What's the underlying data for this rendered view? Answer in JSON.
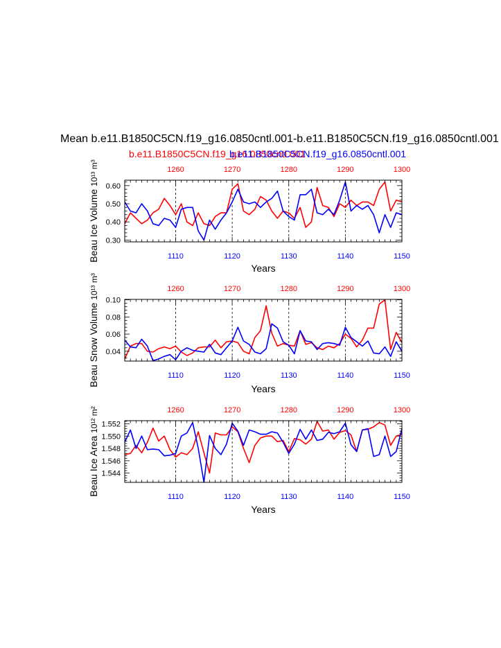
{
  "page": {
    "title": "Mean b.e11.B1850C5CN.f19_g16.0850cntl.001-b.e11.B1850C5CN.f19_g16.0850cntl.001",
    "case_red": "b.e11.B1850C5CN.f19_g16.0850cntl.001",
    "case_blue": "b.e11.B1850C5CN.f19_g16.0850cntl.001"
  },
  "colors": {
    "red": "#ff0000",
    "blue": "#0000ff",
    "axis": "#000000",
    "grid": "#000000"
  },
  "chart_data": [
    {
      "type": "line",
      "ylabel": "Beau Ice Volume",
      "ylabel_unit": "10¹³ m³",
      "xlabel": "Years",
      "top_axis": {
        "range": [
          1251,
          1300
        ],
        "ticks": [
          1260,
          1270,
          1280,
          1290,
          1300
        ]
      },
      "bottom_axis": {
        "range": [
          1101,
          1150
        ],
        "ticks": [
          1110,
          1120,
          1130,
          1140,
          1150
        ]
      },
      "ylim": [
        0.29,
        0.63
      ],
      "yticks": [
        0.3,
        0.4,
        0.5,
        0.6
      ],
      "ytick_labels": [
        "0.30",
        "0.40",
        "0.50",
        "0.60"
      ],
      "grid": "vertical dashed at tick years",
      "series": [
        {
          "name": "red",
          "axis": "top",
          "values": [
            0.39,
            0.45,
            0.42,
            0.39,
            0.41,
            0.45,
            0.47,
            0.53,
            0.49,
            0.44,
            0.5,
            0.4,
            0.38,
            0.45,
            0.39,
            0.38,
            0.43,
            0.45,
            0.45,
            0.58,
            0.61,
            0.46,
            0.44,
            0.47,
            0.54,
            0.52,
            0.46,
            0.42,
            0.46,
            0.45,
            0.42,
            0.48,
            0.37,
            0.4,
            0.59,
            0.49,
            0.48,
            0.43,
            0.5,
            0.48,
            0.52,
            0.49,
            0.51,
            0.51,
            0.49,
            0.58,
            0.62,
            0.46,
            0.52,
            0.51
          ]
        },
        {
          "name": "blue",
          "axis": "bottom",
          "values": [
            0.51,
            0.46,
            0.45,
            0.5,
            0.46,
            0.39,
            0.38,
            0.42,
            0.41,
            0.37,
            0.47,
            0.48,
            0.48,
            0.35,
            0.3,
            0.41,
            0.36,
            0.41,
            0.45,
            0.51,
            0.58,
            0.51,
            0.5,
            0.51,
            0.48,
            0.51,
            0.53,
            0.57,
            0.46,
            0.43,
            0.41,
            0.55,
            0.55,
            0.58,
            0.45,
            0.44,
            0.47,
            0.44,
            0.52,
            0.62,
            0.46,
            0.49,
            0.47,
            0.49,
            0.44,
            0.34,
            0.44,
            0.37,
            0.45,
            0.44
          ]
        }
      ]
    },
    {
      "type": "line",
      "ylabel": "Beau Snow Volume",
      "ylabel_unit": "10¹³ m³",
      "xlabel": "Years",
      "top_axis": {
        "range": [
          1251,
          1300
        ],
        "ticks": [
          1260,
          1270,
          1280,
          1290,
          1300
        ]
      },
      "bottom_axis": {
        "range": [
          1101,
          1150
        ],
        "ticks": [
          1110,
          1120,
          1130,
          1140,
          1150
        ]
      },
      "ylim": [
        0.0285,
        0.1005
      ],
      "yticks": [
        0.04,
        0.06,
        0.08,
        0.1
      ],
      "ytick_labels": [
        "0.04",
        "0.06",
        "0.08",
        "0.10"
      ],
      "grid": "vertical dashed at tick years",
      "series": [
        {
          "name": "red",
          "axis": "top",
          "values": [
            0.031,
            0.046,
            0.049,
            0.049,
            0.04,
            0.039,
            0.043,
            0.045,
            0.043,
            0.046,
            0.039,
            0.035,
            0.038,
            0.044,
            0.045,
            0.045,
            0.053,
            0.044,
            0.051,
            0.052,
            0.05,
            0.04,
            0.037,
            0.056,
            0.064,
            0.093,
            0.061,
            0.046,
            0.049,
            0.047,
            0.046,
            0.064,
            0.048,
            0.05,
            0.044,
            0.042,
            0.046,
            0.044,
            0.049,
            0.06,
            0.055,
            0.045,
            0.053,
            0.067,
            0.067,
            0.095,
            0.1,
            0.042,
            0.062,
            0.05
          ]
        },
        {
          "name": "blue",
          "axis": "bottom",
          "values": [
            0.053,
            0.045,
            0.044,
            0.054,
            0.046,
            0.029,
            0.031,
            0.034,
            0.036,
            0.03,
            0.04,
            0.044,
            0.041,
            0.04,
            0.039,
            0.048,
            0.038,
            0.036,
            0.044,
            0.052,
            0.068,
            0.052,
            0.048,
            0.039,
            0.037,
            0.043,
            0.072,
            0.067,
            0.051,
            0.047,
            0.037,
            0.064,
            0.052,
            0.051,
            0.042,
            0.049,
            0.05,
            0.049,
            0.047,
            0.068,
            0.056,
            0.051,
            0.046,
            0.052,
            0.038,
            0.037,
            0.045,
            0.034,
            0.051,
            0.04
          ]
        }
      ]
    },
    {
      "type": "line",
      "ylabel": "Beau Ice Area",
      "ylabel_unit": "10¹² m²",
      "xlabel": "Years",
      "top_axis": {
        "range": [
          1251,
          1300
        ],
        "ticks": [
          1260,
          1270,
          1280,
          1290,
          1300
        ]
      },
      "bottom_axis": {
        "range": [
          1101,
          1150
        ],
        "ticks": [
          1110,
          1120,
          1130,
          1140,
          1150
        ]
      },
      "ylim": [
        1.5425,
        1.5525
      ],
      "yticks": [
        1.544,
        1.546,
        1.548,
        1.55,
        1.552
      ],
      "ytick_labels": [
        "1.544",
        "1.546",
        "1.548",
        "1.550",
        "1.552"
      ],
      "grid": "vertical dashed at tick years",
      "series": [
        {
          "name": "red",
          "axis": "top",
          "values": [
            1.547,
            1.5472,
            1.5485,
            1.5473,
            1.549,
            1.5513,
            1.5492,
            1.55,
            1.5478,
            1.5466,
            1.5473,
            1.547,
            1.548,
            1.5507,
            1.5473,
            1.544,
            1.5505,
            1.5502,
            1.5502,
            1.5515,
            1.5507,
            1.548,
            1.5457,
            1.5485,
            1.5497,
            1.55,
            1.55,
            1.5491,
            1.5493,
            1.5475,
            1.5496,
            1.5494,
            1.5487,
            1.5495,
            1.5524,
            1.5508,
            1.551,
            1.5495,
            1.5506,
            1.5509,
            1.5502,
            1.5475,
            1.551,
            1.5511,
            1.5515,
            1.5522,
            1.5518,
            1.5485,
            1.55,
            1.5503
          ]
        },
        {
          "name": "blue",
          "axis": "bottom",
          "values": [
            1.549,
            1.551,
            1.548,
            1.55,
            1.5478,
            1.5479,
            1.5478,
            1.5468,
            1.5469,
            1.5472,
            1.55,
            1.5505,
            1.5522,
            1.548,
            1.5425,
            1.5501,
            1.548,
            1.547,
            1.5487,
            1.5521,
            1.5508,
            1.5485,
            1.551,
            1.5507,
            1.5503,
            1.5503,
            1.5507,
            1.5505,
            1.549,
            1.5472,
            1.5487,
            1.5511,
            1.5495,
            1.551,
            1.5493,
            1.5495,
            1.5506,
            1.5504,
            1.5507,
            1.5521,
            1.5486,
            1.5475,
            1.551,
            1.5512,
            1.5467,
            1.547,
            1.55,
            1.5467,
            1.5475,
            1.5512
          ]
        }
      ]
    }
  ]
}
